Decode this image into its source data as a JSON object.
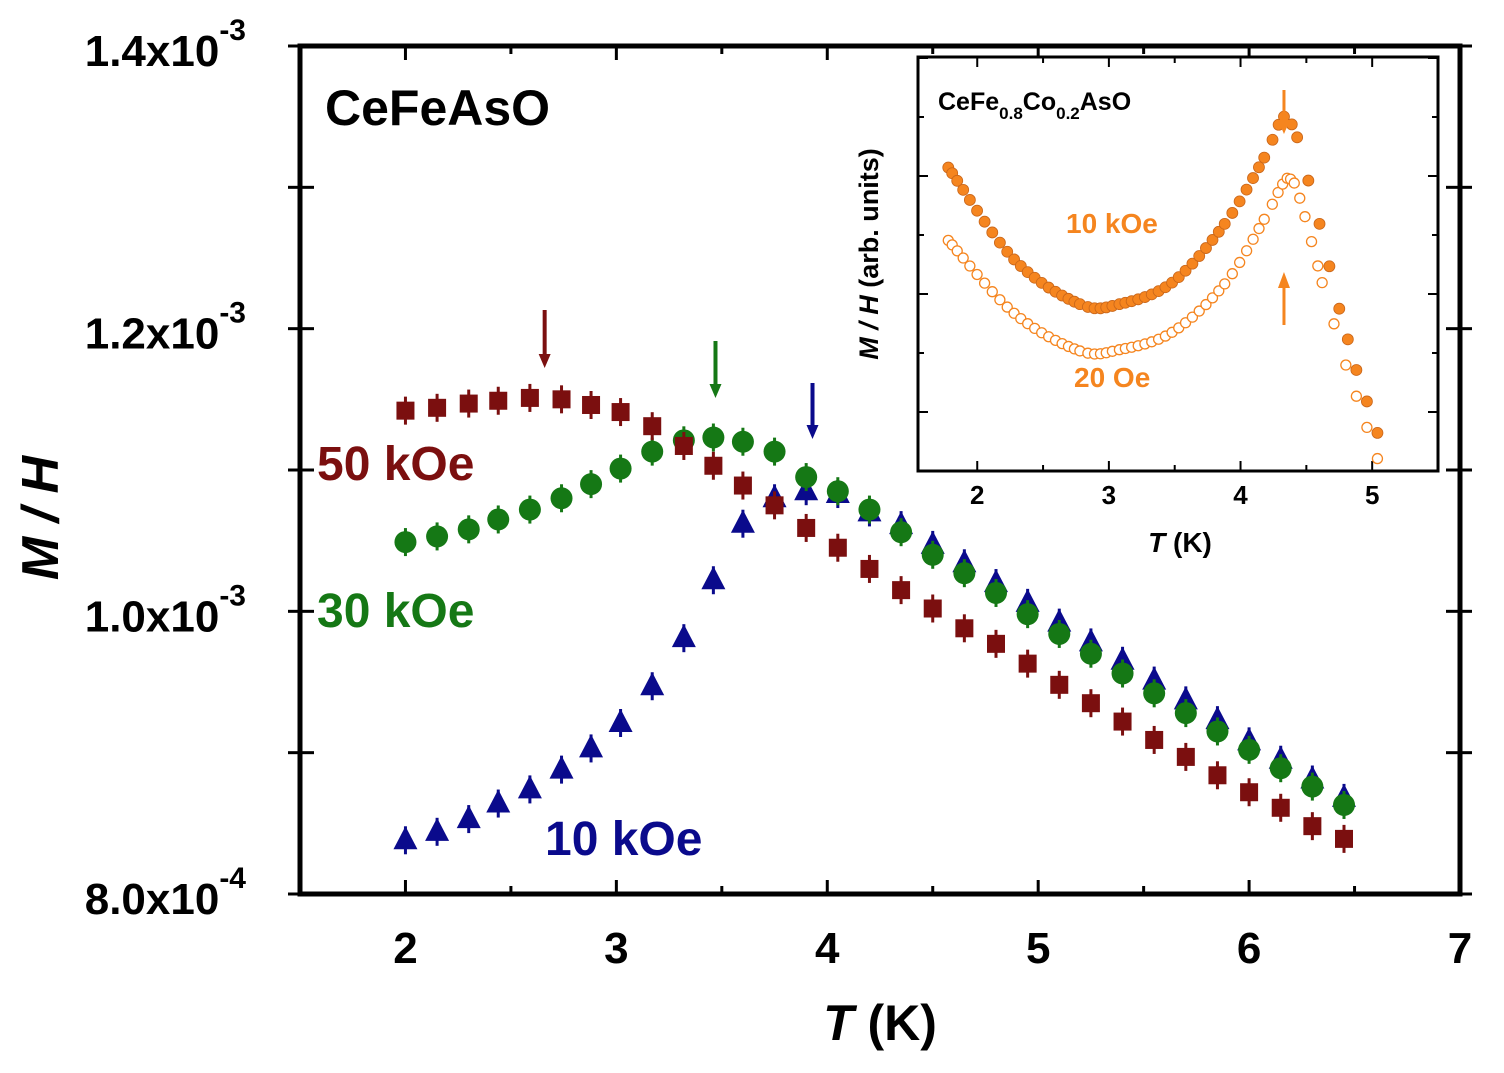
{
  "chart_data": [
    {
      "type": "scatter",
      "title": "CeFeAsO",
      "xlabel": {
        "symbol": "T",
        "unit": " (K)"
      },
      "ylabel": "M / H",
      "xlim": [
        1.5,
        7
      ],
      "ylim": [
        0.0008,
        0.0014
      ],
      "x_ticks": [
        "2",
        "3",
        "4",
        "5",
        "6",
        "7"
      ],
      "y_ticks": [
        {
          "value": 0.0008,
          "mantissa": "8.0x10",
          "exponent": "-4"
        },
        {
          "value": 0.001,
          "mantissa": "1.0x10",
          "exponent": "-3"
        },
        {
          "value": 0.0012,
          "mantissa": "1.2x10",
          "exponent": "-3"
        },
        {
          "value": 0.0014,
          "mantissa": "1.4x10",
          "exponent": "-3"
        }
      ],
      "x": [
        2.0,
        2.15,
        2.3,
        2.44,
        2.59,
        2.74,
        2.88,
        3.02,
        3.17,
        3.32,
        3.46,
        3.6,
        3.75,
        3.9,
        4.05,
        4.2,
        4.35,
        4.5,
        4.65,
        4.8,
        4.95,
        5.1,
        5.25,
        5.4,
        5.55,
        5.7,
        5.85,
        6.0,
        6.15,
        6.3,
        6.45
      ],
      "series": [
        {
          "name": "50 kOe",
          "label": "50 kOe",
          "color": "#7b0f0f",
          "marker": "square",
          "values": [
            0.001142,
            0.001144,
            0.001147,
            0.001149,
            0.001151,
            0.00115,
            0.001146,
            0.001141,
            0.001131,
            0.001117,
            0.001103,
            0.001089,
            0.001075,
            0.001059,
            0.001045,
            0.00103,
            0.001015,
            0.001002,
            0.000988,
            0.000977,
            0.000963,
            0.000948,
            0.000935,
            0.000922,
            0.000909,
            0.000897,
            0.000884,
            0.000872,
            0.000861,
            0.000848,
            0.000839
          ],
          "peak_arrow_x": 2.66
        },
        {
          "name": "30 kOe",
          "label": "30 kOe",
          "color": "#157815",
          "marker": "circle",
          "values": [
            0.001049,
            0.001053,
            0.001058,
            0.001065,
            0.001072,
            0.00108,
            0.00109,
            0.001101,
            0.001113,
            0.001121,
            0.001123,
            0.00112,
            0.001113,
            0.001095,
            0.001085,
            0.001072,
            0.001056,
            0.00104,
            0.001027,
            0.001013,
            0.000998,
            0.000984,
            0.00097,
            0.000956,
            0.000942,
            0.000928,
            0.000915,
            0.000902,
            0.000889,
            0.000876,
            0.000863
          ],
          "peak_arrow_x": 3.47
        },
        {
          "name": "10 kOe",
          "label": "10 kOe",
          "color": "#0a0a8c",
          "marker": "triangle",
          "values": [
            0.000838,
            0.000844,
            0.000853,
            0.000864,
            0.000874,
            0.000888,
            0.000903,
            0.000921,
            0.000947,
            0.000981,
            0.001022,
            0.001062,
            0.00108,
            0.001085,
            0.001083,
            0.00107,
            0.001061,
            0.001047,
            0.001034,
            0.00102,
            0.001006,
            0.000992,
            0.000978,
            0.000965,
            0.000951,
            0.000937,
            0.000923,
            0.000908,
            0.000895,
            0.000881,
            0.000868
          ],
          "peak_arrow_x": 3.93
        }
      ]
    },
    {
      "type": "scatter",
      "title": {
        "main": "CeFe",
        "sub1": "0.8",
        "mid": "Co",
        "sub2": "0.2",
        "end": "AsO"
      },
      "xlabel": {
        "symbol": "T",
        "unit": " (K)"
      },
      "ylabel": {
        "symbol": "M / H",
        "unit": "  (arb. units)"
      },
      "xlim": [
        1.55,
        5.5
      ],
      "ylim": [
        0,
        1
      ],
      "x_ticks": [
        "2",
        "3",
        "4",
        "5"
      ],
      "series": [
        {
          "name": "10 kOe",
          "label": "10 kOe",
          "color": "#f5851f",
          "marker": "filled-circle",
          "points": [
            [
              1.78,
              0.733
            ],
            [
              2.28,
              0.511
            ],
            [
              2.78,
              0.403
            ],
            [
              3.08,
              0.403
            ],
            [
              3.48,
              0.455
            ],
            [
              3.88,
              0.597
            ],
            [
              4.18,
              0.757
            ],
            [
              4.33,
              0.856
            ],
            [
              4.43,
              0.806
            ],
            [
              4.6,
              0.597
            ],
            [
              4.75,
              0.392
            ],
            [
              4.88,
              0.244
            ],
            [
              5.04,
              0.092
            ]
          ],
          "peak_arrow_x": 4.33
        },
        {
          "name": "20 Oe",
          "label": "20 Oe",
          "color": "#f5851f",
          "marker": "open-circle",
          "points": [
            [
              1.78,
              0.557
            ],
            [
              2.28,
              0.381
            ],
            [
              2.78,
              0.29
            ],
            [
              3.08,
              0.293
            ],
            [
              3.48,
              0.335
            ],
            [
              3.88,
              0.452
            ],
            [
              4.18,
              0.608
            ],
            [
              4.32,
              0.693
            ],
            [
              4.38,
              0.705
            ],
            [
              4.45,
              0.659
            ],
            [
              4.62,
              0.455
            ],
            [
              4.8,
              0.256
            ],
            [
              5.04,
              0.03
            ]
          ],
          "peak_arrow_x": 4.33
        }
      ]
    }
  ]
}
